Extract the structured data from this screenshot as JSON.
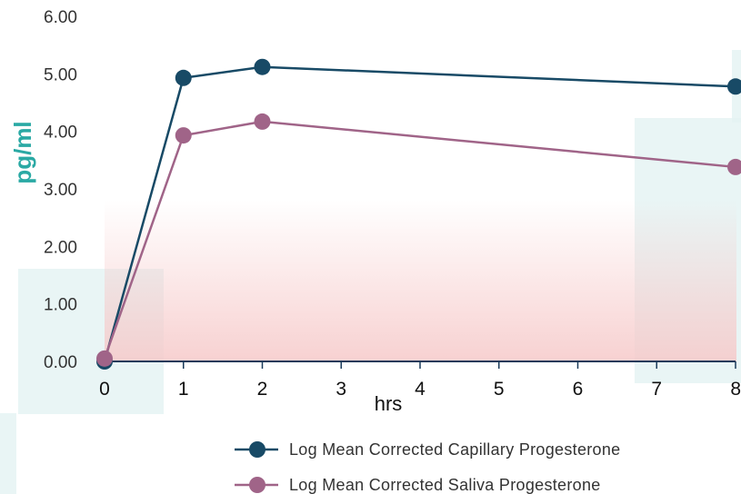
{
  "chart_data": {
    "type": "line",
    "xlabel": "hrs",
    "ylabel": "pg/ml",
    "x_ticks": [
      "0",
      "1",
      "2",
      "3",
      "4",
      "5",
      "6",
      "7",
      "8"
    ],
    "y_ticks": [
      "0.00",
      "1.00",
      "2.00",
      "3.00",
      "4.00",
      "5.00",
      "6.00"
    ],
    "xlim": [
      0,
      8
    ],
    "ylim": [
      0,
      6
    ],
    "grid": false,
    "legend_position": "bottom",
    "series": [
      {
        "name": "Log Mean Corrected Capillary Progesterone",
        "color": "#184a66",
        "x": [
          0,
          1,
          2,
          8
        ],
        "y": [
          0.0,
          4.93,
          5.12,
          4.78
        ]
      },
      {
        "name": "Log Mean Corrected Saliva Progesterone",
        "color": "#a06488",
        "x": [
          0,
          1,
          2,
          8
        ],
        "y": [
          0.05,
          3.93,
          4.17,
          3.38
        ]
      }
    ]
  },
  "colors": {
    "ylabel": "#2aa9a4",
    "axis": "#1a3a5a"
  }
}
